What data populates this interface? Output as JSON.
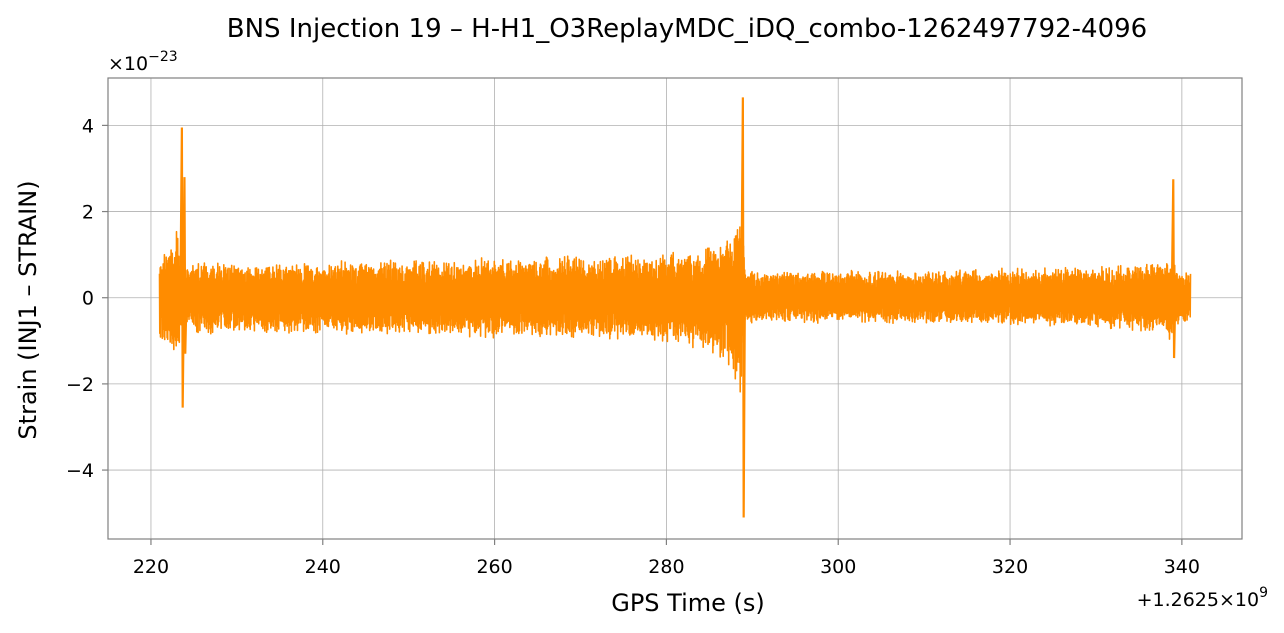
{
  "chart_data": {
    "type": "line",
    "title": "BNS Injection 19 – H-H1_O3ReplayMDC_iDQ_combo-1262497792-4096",
    "xlabel": "GPS Time (s)",
    "ylabel": "Strain (INJ1 – STRAIN)",
    "y_scale_label": "×10",
    "y_scale_exp": "−23",
    "x_offset_label": "+1.2625×10",
    "x_offset_exp": "9",
    "xlim": [
      215,
      347
    ],
    "ylim": [
      -5.6,
      5.1
    ],
    "xticks": [
      220,
      240,
      260,
      280,
      300,
      320,
      340
    ],
    "xtick_labels": [
      "220",
      "240",
      "260",
      "280",
      "300",
      "320",
      "340"
    ],
    "yticks": [
      -4,
      -2,
      0,
      2,
      4
    ],
    "ytick_labels": [
      "−4",
      "−2",
      "0",
      "2",
      "4"
    ],
    "grid": true,
    "series_color": "#ff8c00",
    "envelope": {
      "t": [
        221.0,
        221.5,
        222.0,
        222.5,
        223.0,
        223.5,
        224.0,
        226,
        230,
        240,
        250,
        260,
        270,
        275,
        280,
        283,
        285,
        286,
        287,
        288,
        288.6,
        288.8,
        289.0,
        289.2,
        290,
        300,
        310,
        320,
        330,
        336,
        338,
        338.8,
        339.2,
        340,
        341
      ],
      "upper": [
        0.95,
        1.1,
        1.3,
        1.5,
        1.7,
        1.0,
        0.85,
        0.85,
        0.85,
        0.85,
        0.9,
        0.95,
        1.0,
        1.0,
        1.05,
        1.15,
        1.25,
        1.35,
        1.5,
        1.7,
        2.0,
        2.3,
        1.6,
        0.7,
        0.65,
        0.65,
        0.65,
        0.7,
        0.75,
        0.8,
        0.85,
        0.95,
        0.8,
        0.7,
        0.7
      ],
      "lower": [
        -0.95,
        -1.1,
        -1.3,
        -1.5,
        -1.3,
        -1.0,
        -0.85,
        -0.85,
        -0.85,
        -0.85,
        -0.9,
        -0.95,
        -1.0,
        -1.0,
        -1.1,
        -1.2,
        -1.35,
        -1.5,
        -1.7,
        -2.0,
        -2.3,
        -2.1,
        -1.4,
        -0.65,
        -0.6,
        -0.6,
        -0.6,
        -0.65,
        -0.7,
        -0.8,
        -0.85,
        -1.4,
        -0.7,
        -0.6,
        -0.6
      ]
    },
    "spikes": [
      {
        "t": 223.6,
        "ymax": 3.95,
        "ymin": -2.55
      },
      {
        "t": 223.9,
        "ymax": 2.8,
        "ymin": -1.3
      },
      {
        "t": 288.9,
        "ymax": 4.65,
        "ymin": -5.1
      },
      {
        "t": 339.0,
        "ymax": 2.75,
        "ymin": -1.4
      }
    ]
  }
}
